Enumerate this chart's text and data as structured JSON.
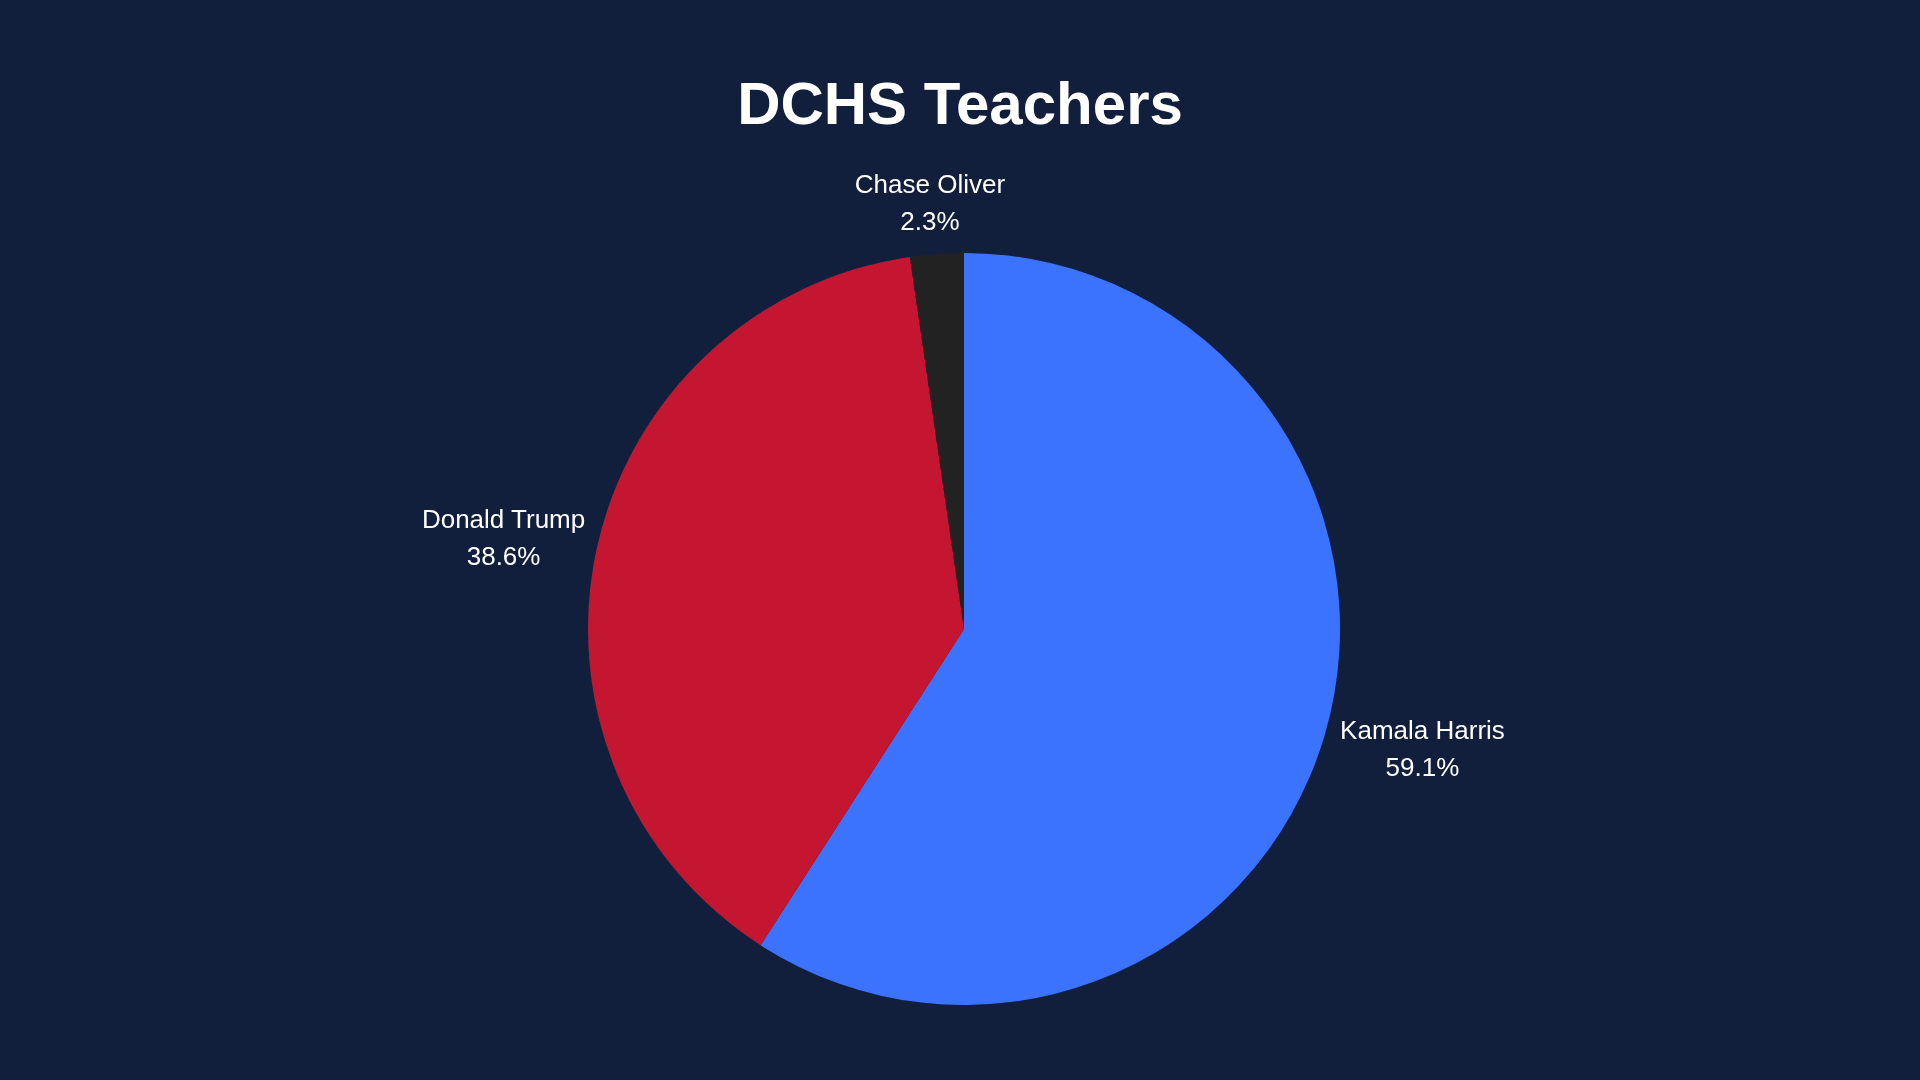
{
  "chart_data": {
    "type": "pie",
    "title": "DCHS Teachers",
    "categories": [
      "Kamala Harris",
      "Donald Trump",
      "Chase Oliver"
    ],
    "values": [
      59.1,
      38.6,
      2.3
    ],
    "colors": [
      "#3b73ff",
      "#c41630",
      "#222222"
    ],
    "value_labels": [
      "59.1%",
      "38.6%",
      "2.3%"
    ]
  }
}
